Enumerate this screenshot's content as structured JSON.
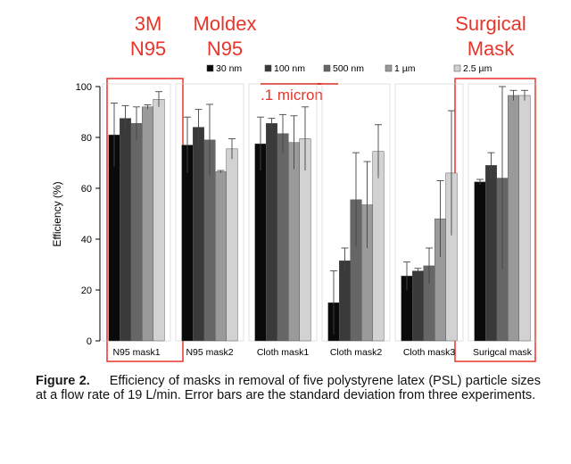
{
  "annotations": {
    "m3_line1": "3M",
    "m3_line2": "N95",
    "moldex_line1": "Moldex",
    "moldex_line2": "N95",
    "surgical_line1": "Surgical",
    "surgical_line2": "Mask",
    "micron": ".1 micron",
    "colors": {
      "annotation": "#e8352a"
    }
  },
  "caption": {
    "label": "Figure 2.",
    "text": "Efficiency of masks in removal of five polystyrene latex (PSL) particle sizes at a flow rate of 19 L/min. Error bars are the standard deviation from three experiments."
  },
  "chart_data": {
    "type": "bar",
    "title": "",
    "xlabel": "",
    "ylabel": "Efficiency (%)",
    "ylim": [
      0,
      100
    ],
    "yticks": [
      0,
      20,
      40,
      60,
      80,
      100
    ],
    "legend_position": "top",
    "categories": [
      "N95 mask1",
      "N95 mask2",
      "Cloth mask1",
      "Cloth mask2",
      "Cloth mask3",
      "Surigcal mask"
    ],
    "series": [
      {
        "name": "30 nm",
        "color": "#0a0a0a",
        "values": [
          81,
          77,
          77.5,
          15,
          25.5,
          62.5
        ],
        "errors": [
          12.5,
          11,
          10.5,
          12.5,
          5.5,
          1
        ]
      },
      {
        "name": "100 nm",
        "color": "#3a3a3a",
        "values": [
          87.5,
          84,
          85.5,
          31.5,
          27.5,
          69
        ],
        "errors": [
          5,
          7,
          2,
          5,
          1,
          5
        ]
      },
      {
        "name": "500 nm",
        "color": "#666666",
        "values": [
          85.5,
          79,
          81.5,
          55.5,
          29.5,
          64
        ],
        "errors": [
          6.5,
          14,
          7.5,
          18.5,
          7,
          36
        ]
      },
      {
        "name": "1 µm",
        "color": "#9a9a9a",
        "values": [
          92,
          66.5,
          78,
          53.5,
          48,
          96.5
        ],
        "errors": [
          0.8,
          0.5,
          10.5,
          17,
          15,
          2
        ]
      },
      {
        "name": "2.5 µm",
        "color": "#d2d2d2",
        "values": [
          95,
          75.5,
          79.5,
          74.5,
          66,
          96.5
        ],
        "errors": [
          3,
          4,
          12.5,
          10.5,
          24.5,
          2
        ]
      }
    ]
  }
}
